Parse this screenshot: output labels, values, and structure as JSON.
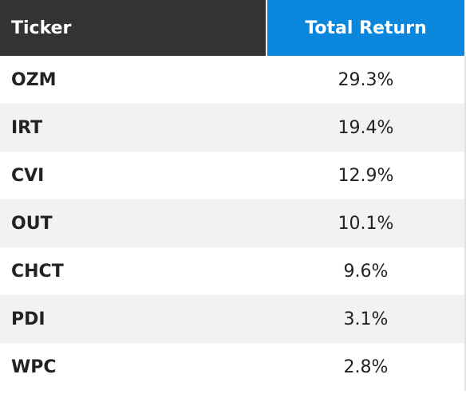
{
  "table": {
    "columns": [
      "Ticker",
      "Total Return"
    ],
    "rows": [
      [
        "OZM",
        "29.3%"
      ],
      [
        "IRT",
        "19.4%"
      ],
      [
        "CVI",
        "12.9%"
      ],
      [
        "OUT",
        "10.1%"
      ],
      [
        "CHCT",
        "9.6%"
      ],
      [
        "PDI",
        "3.1%"
      ],
      [
        "WPC",
        "2.8%"
      ]
    ]
  }
}
